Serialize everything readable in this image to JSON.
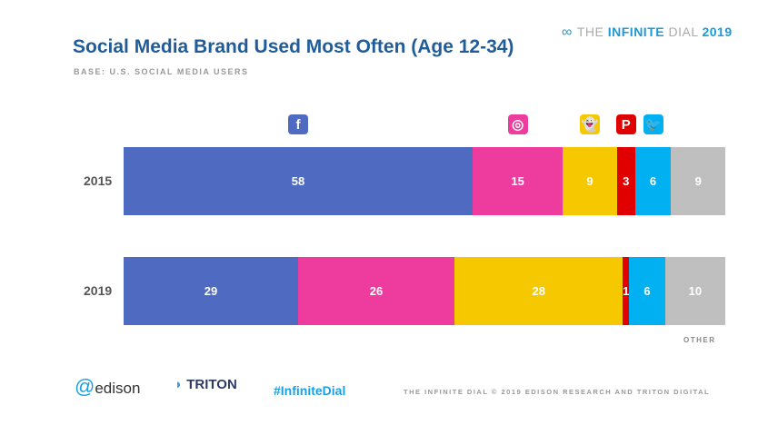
{
  "header": {
    "brand_prefix": "THE ",
    "brand_bold": "INFINITE",
    "brand_suffix": " DIAL",
    "brand_year": "2019"
  },
  "chart_data": {
    "type": "bar",
    "orientation": "horizontal-stacked",
    "title": "Social Media Brand Used Most Often (Age 12-34)",
    "subtitle": "BASE: U.S. SOCIAL MEDIA USERS",
    "categories": [
      "2015",
      "2019"
    ],
    "series": [
      {
        "name": "Facebook",
        "icon": "facebook-icon",
        "color": "#4f6bc1",
        "values": [
          58,
          29
        ]
      },
      {
        "name": "Instagram",
        "icon": "instagram-icon",
        "color": "#ee3c9e",
        "values": [
          15,
          26
        ]
      },
      {
        "name": "Snapchat",
        "icon": "snapchat-icon",
        "color": "#f5c800",
        "values": [
          9,
          28
        ]
      },
      {
        "name": "Pinterest",
        "icon": "pinterest-icon",
        "color": "#e00000",
        "values": [
          3,
          1
        ]
      },
      {
        "name": "Twitter",
        "icon": "twitter-icon",
        "color": "#00b0f0",
        "values": [
          6,
          6
        ]
      },
      {
        "name": "OTHER",
        "color": "#bfbfbf",
        "values": [
          9,
          10
        ]
      }
    ],
    "xlim": [
      0,
      100
    ],
    "other_label": "OTHER"
  },
  "footer": {
    "hashtag": "#InfiniteDial",
    "copyright": "THE INFINITE DIAL   © 2019 EDISON RESEARCH AND TRITON DIGITAL",
    "edison": "edison",
    "triton": "TRITON"
  }
}
